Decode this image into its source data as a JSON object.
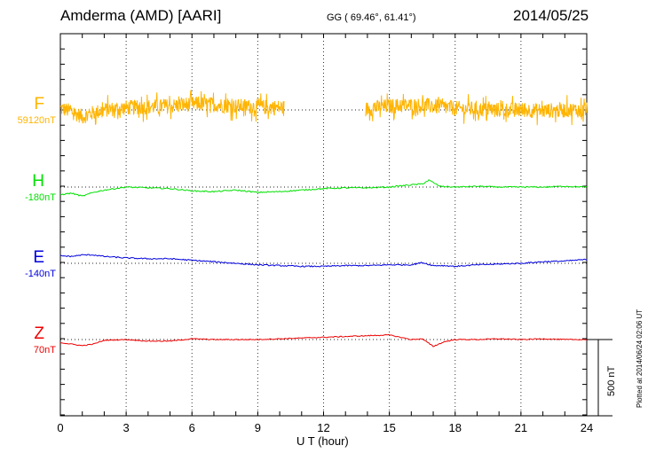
{
  "header": {
    "station": "Amderma (AMD)  [AARI]",
    "coords": "GG ( 69.46°,  61.41°)",
    "date": "2014/05/25"
  },
  "footer": {
    "plotted_at": "Plotted at 2014/06/24 02:06 UT"
  },
  "chart_data": {
    "type": "line",
    "title": "Amderma (AMD)  [AARI]",
    "xlabel": "U T (hour)",
    "xlim": [
      0,
      24
    ],
    "xticks": [
      "0",
      "3",
      "6",
      "9",
      "12",
      "15",
      "18",
      "21",
      "24"
    ],
    "grid": "vertical dotted at 3-hour intervals",
    "scale_bar": {
      "label": "500 nT",
      "value_nT": 500
    },
    "series": [
      {
        "name": "F",
        "baseline_label": "59120nT",
        "baseline_nT": 59120,
        "color": "#ffb400",
        "noise_nT": 50,
        "gaps": [
          [
            10.2,
            13.9
          ]
        ],
        "x": [
          0,
          0.5,
          1,
          1.5,
          2,
          3,
          4,
          5,
          6,
          7,
          8,
          9,
          10.2,
          13.9,
          15,
          16,
          17,
          18,
          19,
          20,
          21,
          22,
          23,
          24
        ],
        "y": [
          10,
          -10,
          -45,
          -20,
          0,
          15,
          20,
          25,
          40,
          35,
          25,
          20,
          15,
          5,
          25,
          30,
          25,
          10,
          5,
          0,
          0,
          -5,
          0,
          0
        ]
      },
      {
        "name": "H",
        "baseline_label": "-180nT",
        "baseline_nT": -180,
        "color": "#00e000",
        "x": [
          0,
          0.5,
          1,
          1.5,
          2,
          2.5,
          3,
          4,
          5,
          6,
          7,
          8,
          9,
          10,
          11,
          12,
          13,
          14,
          15,
          16,
          16.5,
          16.8,
          17,
          17.3,
          18,
          19,
          20,
          21,
          22,
          23,
          24
        ],
        "y": [
          -50,
          -40,
          -60,
          -35,
          -20,
          -10,
          0,
          -5,
          -10,
          -25,
          -30,
          -20,
          -35,
          -30,
          -20,
          -10,
          -5,
          -5,
          0,
          15,
          20,
          45,
          30,
          5,
          0,
          5,
          0,
          0,
          0,
          5,
          0
        ],
        "noise_nT": 4
      },
      {
        "name": "E",
        "baseline_label": "-140nT",
        "baseline_nT": -140,
        "color": "#0000dd",
        "x": [
          0,
          0.5,
          1,
          1.5,
          2,
          3,
          4,
          5,
          6,
          7,
          8,
          9,
          10,
          11,
          12,
          13,
          14,
          15,
          16,
          16.5,
          17,
          17.5,
          18,
          19,
          20,
          21,
          22,
          23,
          24
        ],
        "y": [
          50,
          45,
          55,
          55,
          45,
          35,
          30,
          30,
          20,
          10,
          0,
          -10,
          -15,
          -20,
          -20,
          -15,
          -15,
          -10,
          -10,
          5,
          -15,
          -15,
          -20,
          -10,
          -5,
          0,
          10,
          15,
          25
        ],
        "noise_nT": 4
      },
      {
        "name": "Z",
        "baseline_label": "70nT",
        "baseline_nT": 70,
        "color": "#ee0000",
        "x": [
          0,
          0.5,
          1,
          1.5,
          2,
          3,
          4,
          5,
          6,
          7,
          8,
          9,
          10,
          11,
          12,
          13,
          14,
          15,
          16,
          16.5,
          17,
          17.5,
          18,
          19,
          20,
          21,
          22,
          23,
          24
        ],
        "y": [
          -20,
          -30,
          -40,
          -30,
          -5,
          0,
          -10,
          -10,
          5,
          0,
          0,
          0,
          5,
          10,
          15,
          20,
          25,
          30,
          0,
          5,
          -45,
          -15,
          0,
          0,
          5,
          0,
          5,
          0,
          0
        ],
        "noise_nT": 3
      }
    ]
  }
}
